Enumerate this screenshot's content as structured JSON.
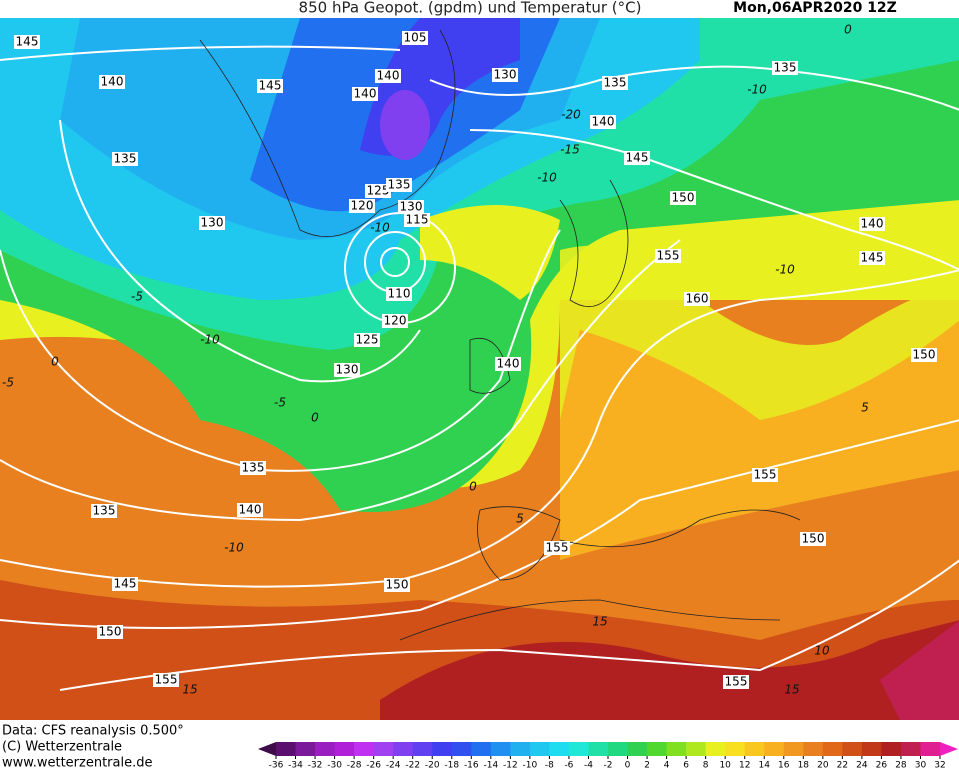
{
  "title": "850 hPa Geopot. (gpdm) und Temperatur (°C)",
  "date": "Mon,06APR2020 12Z",
  "footer": [
    "Data: CFS reanalysis 0.500°",
    "(C) Wetterzentrale",
    "www.wetterzentrale.de"
  ],
  "geopotential_labels": [
    145,
    105,
    130,
    135,
    135,
    140,
    145,
    140,
    140,
    140,
    145,
    135,
    125,
    135,
    120,
    130,
    115,
    150,
    130,
    140,
    145,
    155,
    110,
    160,
    120,
    125,
    150,
    140,
    130,
    135,
    155,
    135,
    140,
    150,
    155,
    145,
    150,
    150,
    155,
    155
  ],
  "temperature_labels": [
    -10,
    -20,
    -15,
    -10,
    -5,
    -10,
    -10,
    0,
    -5,
    -5,
    0,
    5,
    0,
    5,
    -10,
    10,
    15,
    15,
    15,
    0,
    -10
  ],
  "colorbar": {
    "ticks": [
      -36,
      -34,
      -32,
      -30,
      -28,
      -26,
      -24,
      -22,
      -20,
      -18,
      -16,
      -14,
      -12,
      -10,
      -8,
      -6,
      -4,
      -2,
      0,
      2,
      4,
      6,
      8,
      10,
      12,
      14,
      16,
      18,
      20,
      22,
      24,
      26,
      28,
      30,
      32
    ],
    "colors": [
      "#3d0a4a",
      "#5a0f6e",
      "#7a1a9a",
      "#9a1fc0",
      "#b020d8",
      "#c030f0",
      "#a040f0",
      "#8040f0",
      "#6040f0",
      "#4040f0",
      "#3050f0",
      "#2070f0",
      "#2090f0",
      "#20b0f0",
      "#20c8f0",
      "#20dcf0",
      "#20e8d8",
      "#20e0a8",
      "#20d880",
      "#30d050",
      "#50d830",
      "#80e020",
      "#b0e820",
      "#e8f020",
      "#f8e020",
      "#f8c820",
      "#f8b020",
      "#f09820",
      "#e88020",
      "#e06818",
      "#d05018",
      "#c03818",
      "#b02020",
      "#c02050",
      "#e02090",
      "#f020c0"
    ]
  }
}
